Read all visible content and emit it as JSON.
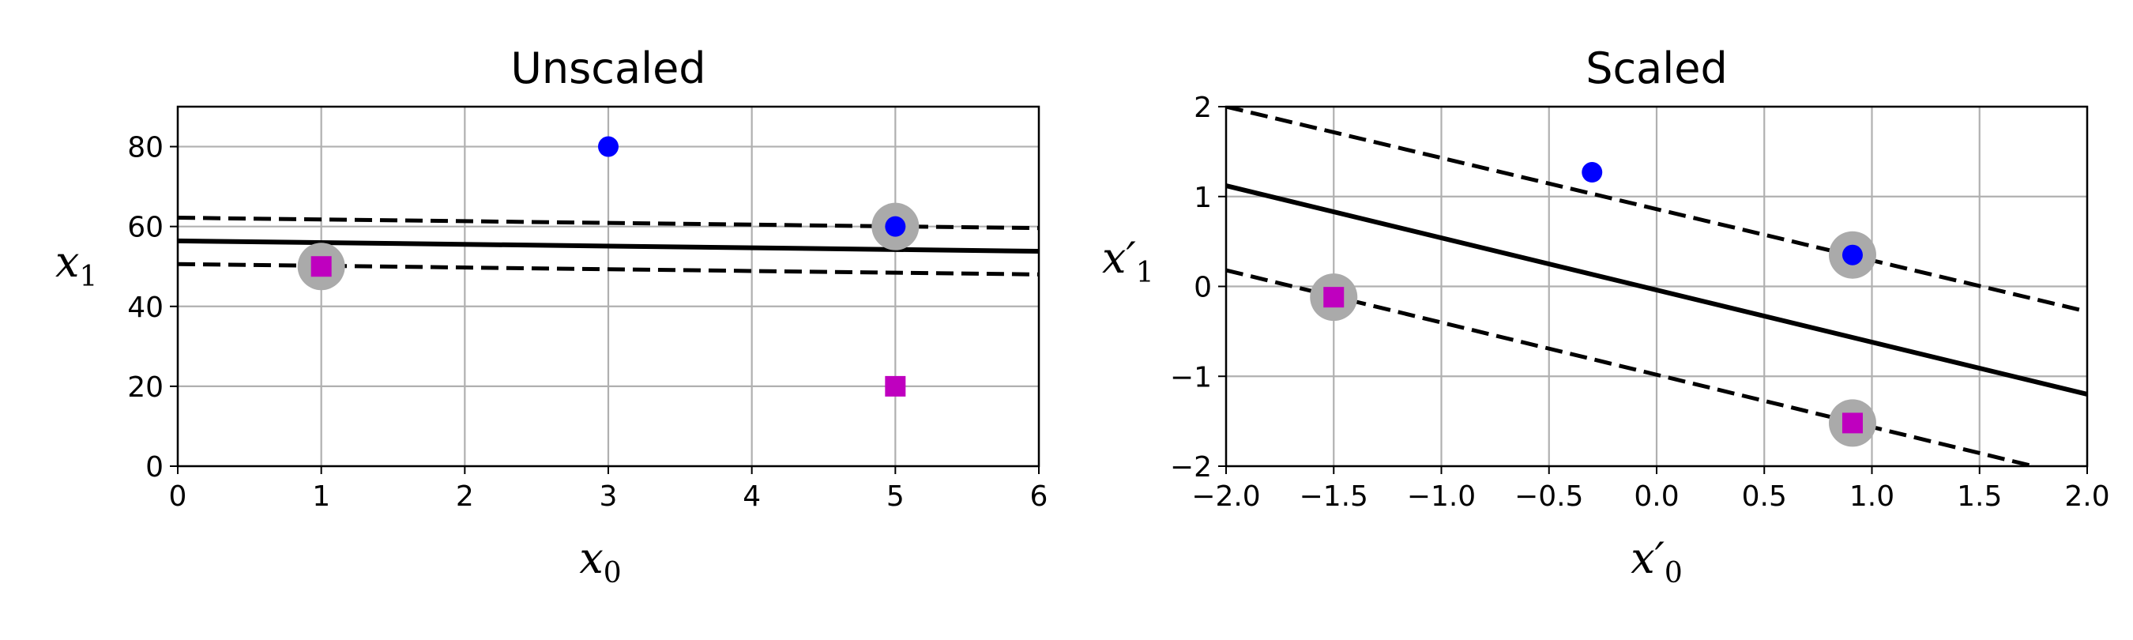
{
  "chart_data": [
    {
      "type": "scatter",
      "title": "Unscaled",
      "xlabel": "x",
      "xlabel_sub": "0",
      "ylabel": "x",
      "ylabel_sub": "1",
      "xlim": [
        0,
        6
      ],
      "ylim": [
        0,
        90
      ],
      "xticks": [
        0,
        1,
        2,
        3,
        4,
        5,
        6
      ],
      "yticks": [
        0,
        20,
        40,
        60,
        80
      ],
      "grid": true,
      "points": [
        {
          "x": 1,
          "y": 50,
          "marker": "square",
          "color": "#bf00bf",
          "support_vector": true
        },
        {
          "x": 5,
          "y": 20,
          "marker": "square",
          "color": "#bf00bf",
          "support_vector": false
        },
        {
          "x": 3,
          "y": 80,
          "marker": "circle",
          "color": "#0000ff",
          "support_vector": false
        },
        {
          "x": 5,
          "y": 60,
          "marker": "circle",
          "color": "#0000ff",
          "support_vector": true
        }
      ],
      "lines": [
        {
          "style": "solid",
          "x": [
            0,
            6
          ],
          "y": [
            56.4,
            53.8
          ]
        },
        {
          "style": "dashed",
          "x": [
            0,
            6
          ],
          "y": [
            62.2,
            59.6
          ]
        },
        {
          "style": "dashed",
          "x": [
            0,
            6
          ],
          "y": [
            50.6,
            48.0
          ]
        }
      ]
    },
    {
      "type": "scatter",
      "title": "Scaled",
      "xlabel": "x′",
      "xlabel_sub": "0",
      "ylabel": "x′",
      "ylabel_sub": "1",
      "xlim": [
        -2.0,
        2.0
      ],
      "ylim": [
        -2,
        2
      ],
      "xticks": [
        -2.0,
        -1.5,
        -1.0,
        -0.5,
        0.0,
        0.5,
        1.0,
        1.5,
        2.0
      ],
      "xtick_labels": [
        "−2.0",
        "−1.5",
        "−1.0",
        "−0.5",
        "0.0",
        "0.5",
        "1.0",
        "1.5",
        "2.0"
      ],
      "yticks": [
        -2,
        -1,
        0,
        1,
        2
      ],
      "ytick_labels": [
        "−2",
        "−1",
        "0",
        "1",
        "2"
      ],
      "grid": true,
      "points": [
        {
          "x": -1.5,
          "y": -0.12,
          "marker": "square",
          "color": "#bf00bf",
          "support_vector": true
        },
        {
          "x": 0.91,
          "y": -1.52,
          "marker": "square",
          "color": "#bf00bf",
          "support_vector": true
        },
        {
          "x": -0.3,
          "y": 1.27,
          "marker": "circle",
          "color": "#0000ff",
          "support_vector": false
        },
        {
          "x": 0.91,
          "y": 0.35,
          "marker": "circle",
          "color": "#0000ff",
          "support_vector": true
        }
      ],
      "lines": [
        {
          "style": "solid",
          "x": [
            -2.0,
            2.0
          ],
          "y": [
            1.12,
            -1.2
          ]
        },
        {
          "style": "dashed",
          "x": [
            -2.0,
            2.0
          ],
          "y": [
            2.0,
            -0.28
          ]
        },
        {
          "style": "dashed",
          "x": [
            -2.0,
            1.75
          ],
          "y": [
            0.18,
            -2.0
          ]
        }
      ]
    }
  ]
}
